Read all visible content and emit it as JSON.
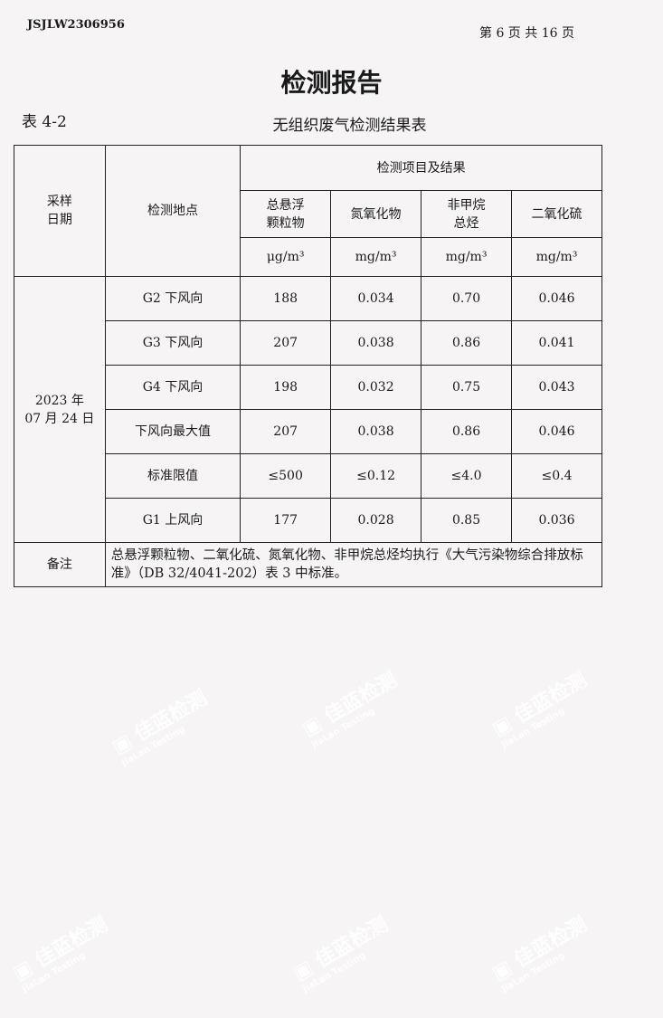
{
  "header": {
    "doc_id": "JSJLW2306956",
    "page_info": "第 6 页 共 16 页"
  },
  "title": "检测报告",
  "table_no": "表 4-2",
  "table_title": "无组织废气检测结果表",
  "table": {
    "col_date": "采样\n日期",
    "col_site": "检测地点",
    "col_group": "检测项目及结果",
    "items": [
      {
        "name": "总悬浮\n颗粒物",
        "unit": "μg/m³"
      },
      {
        "name": "氮氧化物",
        "unit": "mg/m³"
      },
      {
        "name": "非甲烷\n总烃",
        "unit": "mg/m³"
      },
      {
        "name": "二氧化硫",
        "unit": "mg/m³"
      }
    ],
    "date": "2023 年\n07 月 24 日",
    "rows": [
      {
        "site": "G2 下风向",
        "values": [
          "188",
          "0.034",
          "0.70",
          "0.046"
        ]
      },
      {
        "site": "G3 下风向",
        "values": [
          "207",
          "0.038",
          "0.86",
          "0.041"
        ]
      },
      {
        "site": "G4 下风向",
        "values": [
          "198",
          "0.032",
          "0.75",
          "0.043"
        ]
      },
      {
        "site": "下风向最大值",
        "values": [
          "207",
          "0.038",
          "0.86",
          "0.046"
        ]
      },
      {
        "site": "标准限值",
        "values": [
          "≤500",
          "≤0.12",
          "≤4.0",
          "≤0.4"
        ]
      },
      {
        "site": "G1 上风向",
        "values": [
          "177",
          "0.028",
          "0.85",
          "0.036"
        ]
      }
    ],
    "note_label": "备注",
    "note_text": "总悬浮颗粒物、二氧化硫、氮氧化物、非甲烷总烃均执行《大气污染物综合排放标准》（DB 32/4041-202）表 3 中标准。"
  },
  "watermark": {
    "cn": "佳蓝检测",
    "en": "JiaLan Testing"
  }
}
